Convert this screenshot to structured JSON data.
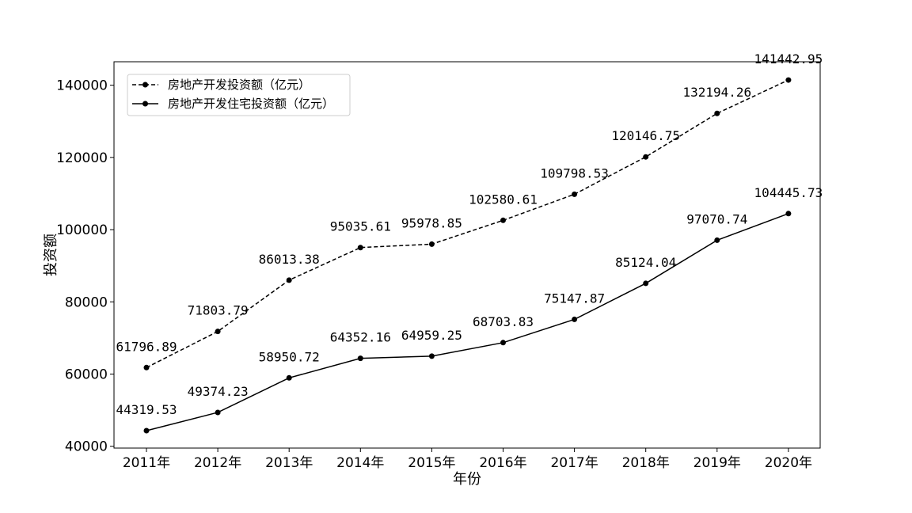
{
  "chart_data": {
    "type": "line",
    "xlabel": "年份",
    "ylabel": "投资额",
    "categories": [
      "2011年",
      "2012年",
      "2013年",
      "2014年",
      "2015年",
      "2016年",
      "2017年",
      "2018年",
      "2019年",
      "2020年"
    ],
    "ylim": [
      39500,
      146500
    ],
    "yticks": [
      40000,
      60000,
      80000,
      100000,
      120000,
      140000
    ],
    "ytick_labels": [
      "40000",
      "60000",
      "80000",
      "100000",
      "120000",
      "140000"
    ],
    "grid": false,
    "legend_position": "top-left",
    "series": [
      {
        "name": "房地产开发投资额（亿元）",
        "style": "dashed",
        "marker": "circle",
        "color": "#000000",
        "values": [
          61796.89,
          71803.79,
          86013.38,
          95035.61,
          95978.85,
          102580.61,
          109798.53,
          120146.75,
          132194.26,
          141442.95
        ],
        "labels": [
          "61796.89",
          "71803.79",
          "86013.38",
          "95035.61",
          "95978.85",
          "102580.61",
          "109798.53",
          "120146.75",
          "132194.26",
          "141442.95"
        ]
      },
      {
        "name": "房地产开发住宅投资额（亿元）",
        "style": "solid",
        "marker": "circle",
        "color": "#000000",
        "values": [
          44319.53,
          49374.23,
          58950.72,
          64352.16,
          64959.25,
          68703.83,
          75147.87,
          85124.04,
          97070.74,
          104445.73
        ],
        "labels": [
          "44319.53",
          "49374.23",
          "58950.72",
          "64352.16",
          "64959.25",
          "68703.83",
          "75147.87",
          "85124.04",
          "97070.74",
          "104445.73"
        ]
      }
    ]
  }
}
